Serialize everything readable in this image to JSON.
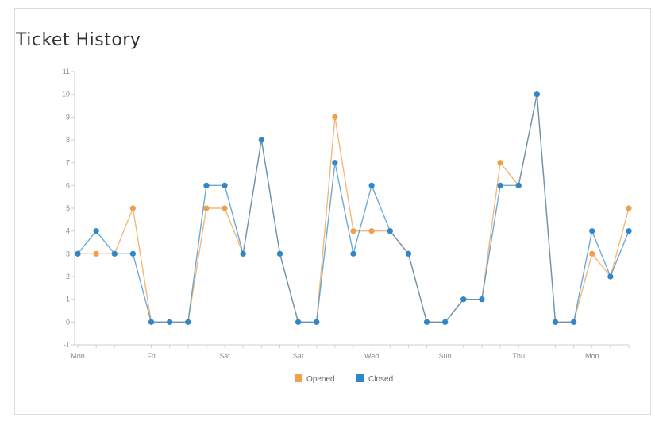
{
  "chart_data": {
    "type": "line",
    "title": "Ticket History",
    "x": [
      0,
      1,
      2,
      3,
      4,
      5,
      6,
      7,
      8,
      9,
      10,
      11,
      12,
      13,
      14,
      15,
      16,
      17,
      18,
      19,
      20,
      21,
      22,
      23,
      24,
      25,
      26,
      27,
      28,
      29,
      30
    ],
    "x_tick_labels": [
      {
        "x": 0,
        "label": "Mon"
      },
      {
        "x": 4,
        "label": "Fri"
      },
      {
        "x": 8,
        "label": "Sat"
      },
      {
        "x": 12,
        "label": "Sat"
      },
      {
        "x": 16,
        "label": "Wed"
      },
      {
        "x": 20,
        "label": "Sun"
      },
      {
        "x": 24,
        "label": "Thu"
      },
      {
        "x": 28,
        "label": "Mon"
      }
    ],
    "series": [
      {
        "name": "Opened",
        "color": "#f0a04b",
        "values": [
          3,
          3,
          3,
          5,
          0,
          0,
          0,
          5,
          5,
          3,
          8,
          3,
          0,
          0,
          9,
          4,
          4,
          4,
          3,
          0,
          0,
          1,
          1,
          7,
          6,
          10,
          0,
          0,
          3,
          2,
          5
        ]
      },
      {
        "name": "Closed",
        "color": "#2f86c8",
        "values": [
          3,
          4,
          3,
          3,
          0,
          0,
          0,
          6,
          6,
          3,
          8,
          3,
          0,
          0,
          7,
          3,
          6,
          4,
          3,
          0,
          0,
          1,
          1,
          6,
          6,
          10,
          0,
          0,
          4,
          2,
          4
        ]
      }
    ],
    "ylim": [
      -1,
      11
    ],
    "y_ticks": [
      -1,
      0,
      1,
      2,
      3,
      4,
      5,
      6,
      7,
      8,
      9,
      10,
      11
    ],
    "grid": false,
    "legend_position": "bottom-center"
  }
}
